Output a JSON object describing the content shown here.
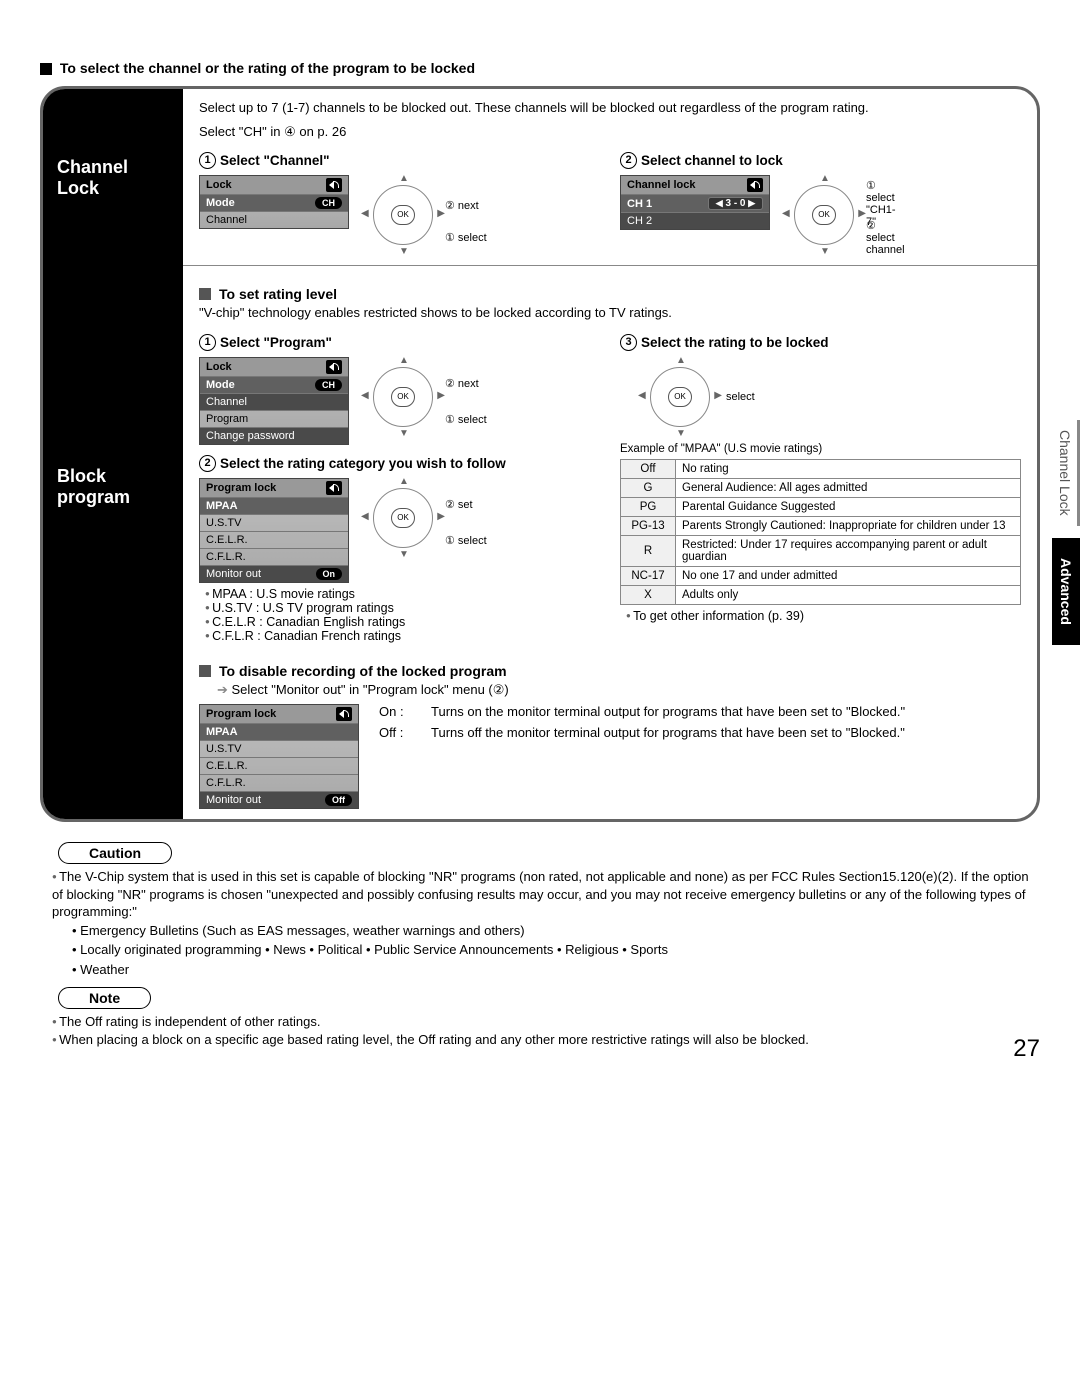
{
  "heading": "To select the channel or the rating of the program to be locked",
  "channelLock": {
    "label": "Channel\nLock",
    "intro1": "Select up to 7 (1-7) channels to be blocked out. These channels will be blocked out regardless of the program rating.",
    "intro2": "Select \"CH\" in ④ on p. 26",
    "step1": {
      "num": "1",
      "title": "Select \"Channel\""
    },
    "step2": {
      "num": "2",
      "title": "Select channel to lock"
    },
    "osd1": {
      "title": "Lock",
      "rows": [
        {
          "label": "Mode",
          "value": "CH",
          "hl": true
        },
        {
          "label": "Channel",
          "value": ""
        }
      ]
    },
    "dpad1": {
      "a": "② next",
      "b": "① select"
    },
    "osd2": {
      "title": "Channel lock",
      "rows": [
        {
          "label": "CH 1",
          "value": "3 - 0",
          "hl": true,
          "arrows": true
        },
        {
          "label": "CH 2",
          "value": "",
          "dark": true
        }
      ]
    },
    "dpad2": {
      "a": "① select\n\"CH1-7\"",
      "b": "② select\nchannel"
    }
  },
  "blockProgram": {
    "label": "Block\nprogram",
    "setRating": {
      "heading": "To set rating level",
      "sub": "\"V-chip\" technology enables restricted shows to be locked according to TV ratings."
    },
    "step1": {
      "num": "1",
      "title": "Select \"Program\""
    },
    "step3": {
      "num": "3",
      "title": "Select the rating to be locked"
    },
    "osd3": {
      "title": "Lock",
      "rows": [
        {
          "label": "Mode",
          "value": "CH",
          "hl": true
        },
        {
          "label": "Channel",
          "value": "",
          "dark": true
        },
        {
          "label": "Program",
          "value": ""
        },
        {
          "label": "Change password",
          "value": "",
          "dark": true
        }
      ]
    },
    "dpad3": {
      "a": "② next",
      "b": "① select"
    },
    "dpad4": {
      "a": "select"
    },
    "step2": {
      "num": "2",
      "title": "Select the rating category you wish to follow"
    },
    "osd4": {
      "title": "Program lock",
      "rows": [
        {
          "label": "MPAA",
          "value": "",
          "hl": true
        },
        {
          "label": "U.S.TV",
          "value": ""
        },
        {
          "label": "C.E.L.R.",
          "value": ""
        },
        {
          "label": "C.F.L.R.",
          "value": ""
        },
        {
          "label": "Monitor out",
          "value": "On",
          "dark": true
        }
      ]
    },
    "dpad5": {
      "a": "② set",
      "b": "① select"
    },
    "categories": [
      "MPAA : U.S movie ratings",
      "U.S.TV : U.S TV program ratings",
      "C.E.L.R : Canadian English ratings",
      "C.F.L.R : Canadian French ratings"
    ],
    "mpaa": {
      "caption": "Example of \"MPAA\" (U.S movie ratings)",
      "rows": [
        [
          "Off",
          "No rating"
        ],
        [
          "G",
          "General Audience: All ages admitted"
        ],
        [
          "PG",
          "Parental Guidance Suggested"
        ],
        [
          "PG-13",
          "Parents Strongly Cautioned: Inappropriate for children under 13"
        ],
        [
          "R",
          "Restricted: Under 17 requires accompanying parent or adult guardian"
        ],
        [
          "NC-17",
          "No one 17 and under admitted"
        ],
        [
          "X",
          "Adults only"
        ]
      ],
      "footer": "To get other information (p. 39)"
    },
    "disable": {
      "heading": "To disable recording of the locked program",
      "sub": "Select \"Monitor out\" in \"Program lock\" menu (②)",
      "osd": {
        "title": "Program lock",
        "rows": [
          {
            "label": "MPAA",
            "value": "",
            "hl": true
          },
          {
            "label": "U.S.TV",
            "value": ""
          },
          {
            "label": "C.E.L.R.",
            "value": ""
          },
          {
            "label": "C.F.L.R.",
            "value": ""
          },
          {
            "label": "Monitor out",
            "value": "Off",
            "dark": true
          }
        ]
      },
      "on": {
        "tag": "On :",
        "text": "Turns on the monitor terminal output for programs that have been set to \"Blocked.\""
      },
      "off": {
        "tag": "Off :",
        "text": "Turns off the monitor terminal output for programs that have been set to \"Blocked.\""
      }
    }
  },
  "caution": {
    "badge": "Caution",
    "text": "The V-Chip system that is used in this set is capable of blocking \"NR\" programs (non rated, not applicable and none) as per FCC Rules Section15.120(e)(2). If the option of blocking \"NR\" programs is chosen \"unexpected and possibly confusing results may occur, and you may not receive emergency bulletins or any of the following types of programming:\"",
    "bullets": [
      "Emergency Bulletins (Such as EAS messages, weather warnings and others)",
      "Locally originated programming • News • Political • Public Service Announcements • Religious • Sports",
      "Weather"
    ]
  },
  "note": {
    "badge": "Note",
    "lines": [
      "The Off rating is independent of other ratings.",
      "When placing a block on a specific age based rating level, the Off rating and any other more restrictive ratings will also be blocked."
    ]
  },
  "sideTabs": {
    "light": "Channel Lock",
    "dark": "Advanced"
  },
  "pageNum": "27"
}
